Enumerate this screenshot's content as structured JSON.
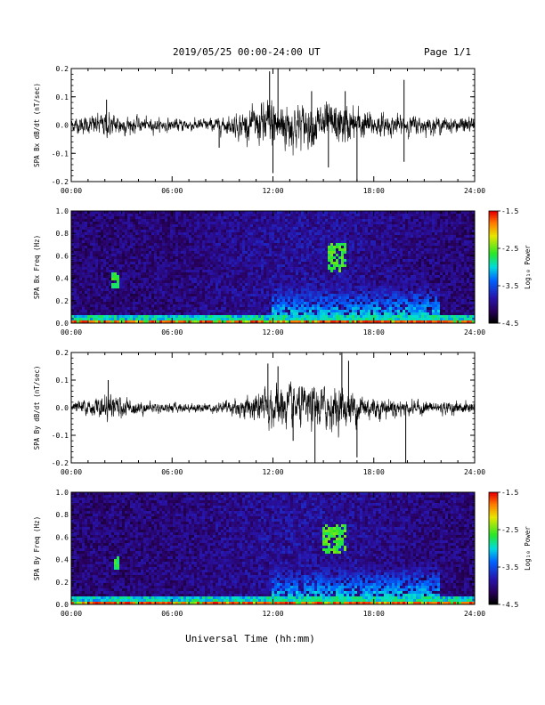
{
  "header": {
    "title": "2019/05/25  00:00-24:00 UT",
    "page": "Page 1/1"
  },
  "xlabel": "Universal Time (hh:mm)",
  "colors": {
    "trace": "#000000",
    "background": "#ffffff"
  },
  "chart_data": [
    {
      "type": "line",
      "ylabel": "SPA Bx dB/dt (nT/sec)",
      "xlim": [
        0,
        24
      ],
      "ylim": [
        -0.2,
        0.2
      ],
      "x_ticks": [
        "00:00",
        "06:00",
        "12:00",
        "18:00",
        "24:00"
      ],
      "y_ticks": [
        "-0.2",
        "-0.1",
        "0.0",
        "0.1",
        "0.2"
      ],
      "envelope_hours": [
        0,
        1,
        2,
        3,
        4,
        5,
        6,
        7,
        8,
        9,
        10,
        11,
        12,
        13,
        14,
        15,
        16,
        17,
        18,
        19,
        20,
        21,
        22,
        23,
        24
      ],
      "envelope_amplitude": [
        0.03,
        0.035,
        0.05,
        0.04,
        0.03,
        0.025,
        0.025,
        0.025,
        0.025,
        0.03,
        0.05,
        0.07,
        0.12,
        0.1,
        0.08,
        0.09,
        0.08,
        0.07,
        0.05,
        0.04,
        0.04,
        0.035,
        0.03,
        0.03,
        0.03
      ],
      "spikes": [
        {
          "x": 11.8,
          "y": 0.19
        },
        {
          "x": 12.3,
          "y": 0.2
        },
        {
          "x": 12.0,
          "y": -0.17
        },
        {
          "x": 14.3,
          "y": 0.12
        },
        {
          "x": 15.3,
          "y": -0.15
        },
        {
          "x": 16.3,
          "y": 0.12
        },
        {
          "x": 17.0,
          "y": -0.22
        },
        {
          "x": 19.8,
          "y": 0.16
        },
        {
          "x": 19.8,
          "y": -0.13
        },
        {
          "x": 8.8,
          "y": -0.08
        },
        {
          "x": 2.1,
          "y": 0.09
        }
      ]
    },
    {
      "type": "heatmap",
      "ylabel": "SPA Bx Freq (Hz)",
      "xlim": [
        0,
        24
      ],
      "ylim": [
        0.0,
        1.0
      ],
      "x_ticks": [
        "00:00",
        "06:00",
        "12:00",
        "18:00",
        "24:00"
      ],
      "y_ticks": [
        "0.0",
        "0.2",
        "0.4",
        "0.6",
        "0.8",
        "1.0"
      ],
      "colorbar": {
        "label": "Log₁₀ Power",
        "range": [
          -4.5,
          -1.5
        ],
        "ticks": [
          "-1.5",
          "-2.5",
          "-3.5",
          "-4.5"
        ]
      },
      "features": [
        {
          "name": "",
          "x": [
            12,
            22
          ],
          "y": [
            0.0,
            0.35
          ],
          "log_power": -2.8
        },
        {
          "name": "",
          "x": [
            15.2,
            16.4
          ],
          "y": [
            0.45,
            0.72
          ],
          "log_power": -2.6
        },
        {
          "name": "",
          "x": [
            2.4,
            2.8
          ],
          "y": [
            0.3,
            0.45
          ],
          "log_power": -2.7
        },
        {
          "name": "",
          "x": [
            0,
            24
          ],
          "y": [
            0.0,
            0.03
          ],
          "log_power": -1.7
        }
      ]
    },
    {
      "type": "line",
      "ylabel": "SPA By dB/dt (nT/sec)",
      "xlim": [
        0,
        24
      ],
      "ylim": [
        -0.2,
        0.2
      ],
      "x_ticks": [
        "00:00",
        "06:00",
        "12:00",
        "18:00",
        "24:00"
      ],
      "y_ticks": [
        "-0.2",
        "-0.1",
        "0.0",
        "0.1",
        "0.2"
      ],
      "envelope_hours": [
        0,
        1,
        2,
        3,
        4,
        5,
        6,
        7,
        8,
        9,
        10,
        11,
        12,
        13,
        14,
        15,
        16,
        17,
        18,
        19,
        20,
        21,
        22,
        23,
        24
      ],
      "envelope_amplitude": [
        0.025,
        0.03,
        0.05,
        0.04,
        0.03,
        0.02,
        0.02,
        0.02,
        0.02,
        0.025,
        0.04,
        0.06,
        0.09,
        0.09,
        0.08,
        0.09,
        0.08,
        0.07,
        0.05,
        0.04,
        0.03,
        0.03,
        0.025,
        0.025,
        0.025
      ],
      "spikes": [
        {
          "x": 11.7,
          "y": 0.16
        },
        {
          "x": 14.5,
          "y": -0.22
        },
        {
          "x": 16.1,
          "y": 0.2
        },
        {
          "x": 16.5,
          "y": 0.17
        },
        {
          "x": 17.0,
          "y": -0.18
        },
        {
          "x": 19.9,
          "y": -0.22
        },
        {
          "x": 12.3,
          "y": 0.15
        },
        {
          "x": 2.2,
          "y": 0.1
        },
        {
          "x": 13.2,
          "y": -0.12
        }
      ]
    },
    {
      "type": "heatmap",
      "ylabel": "SPA By Freq (Hz)",
      "xlim": [
        0,
        24
      ],
      "ylim": [
        0.0,
        1.0
      ],
      "x_ticks": [
        "00:00",
        "06:00",
        "12:00",
        "18:00",
        "24:00"
      ],
      "y_ticks": [
        "0.0",
        "0.2",
        "0.4",
        "0.6",
        "0.8",
        "1.0"
      ],
      "colorbar": {
        "label": "Log₁₀ Power",
        "range": [
          -4.5,
          -1.5
        ],
        "ticks": [
          "-1.5",
          "-2.5",
          "-3.5",
          "-4.5"
        ]
      },
      "features": [
        {
          "name": "",
          "x": [
            12,
            22
          ],
          "y": [
            0.0,
            0.35
          ],
          "log_power": -2.8
        },
        {
          "name": "",
          "x": [
            15.0,
            16.3
          ],
          "y": [
            0.45,
            0.72
          ],
          "log_power": -2.6
        },
        {
          "name": "",
          "x": [
            2.5,
            2.8
          ],
          "y": [
            0.3,
            0.42
          ],
          "log_power": -2.7
        },
        {
          "name": "",
          "x": [
            0,
            24
          ],
          "y": [
            0.0,
            0.03
          ],
          "log_power": -1.7
        }
      ]
    }
  ]
}
